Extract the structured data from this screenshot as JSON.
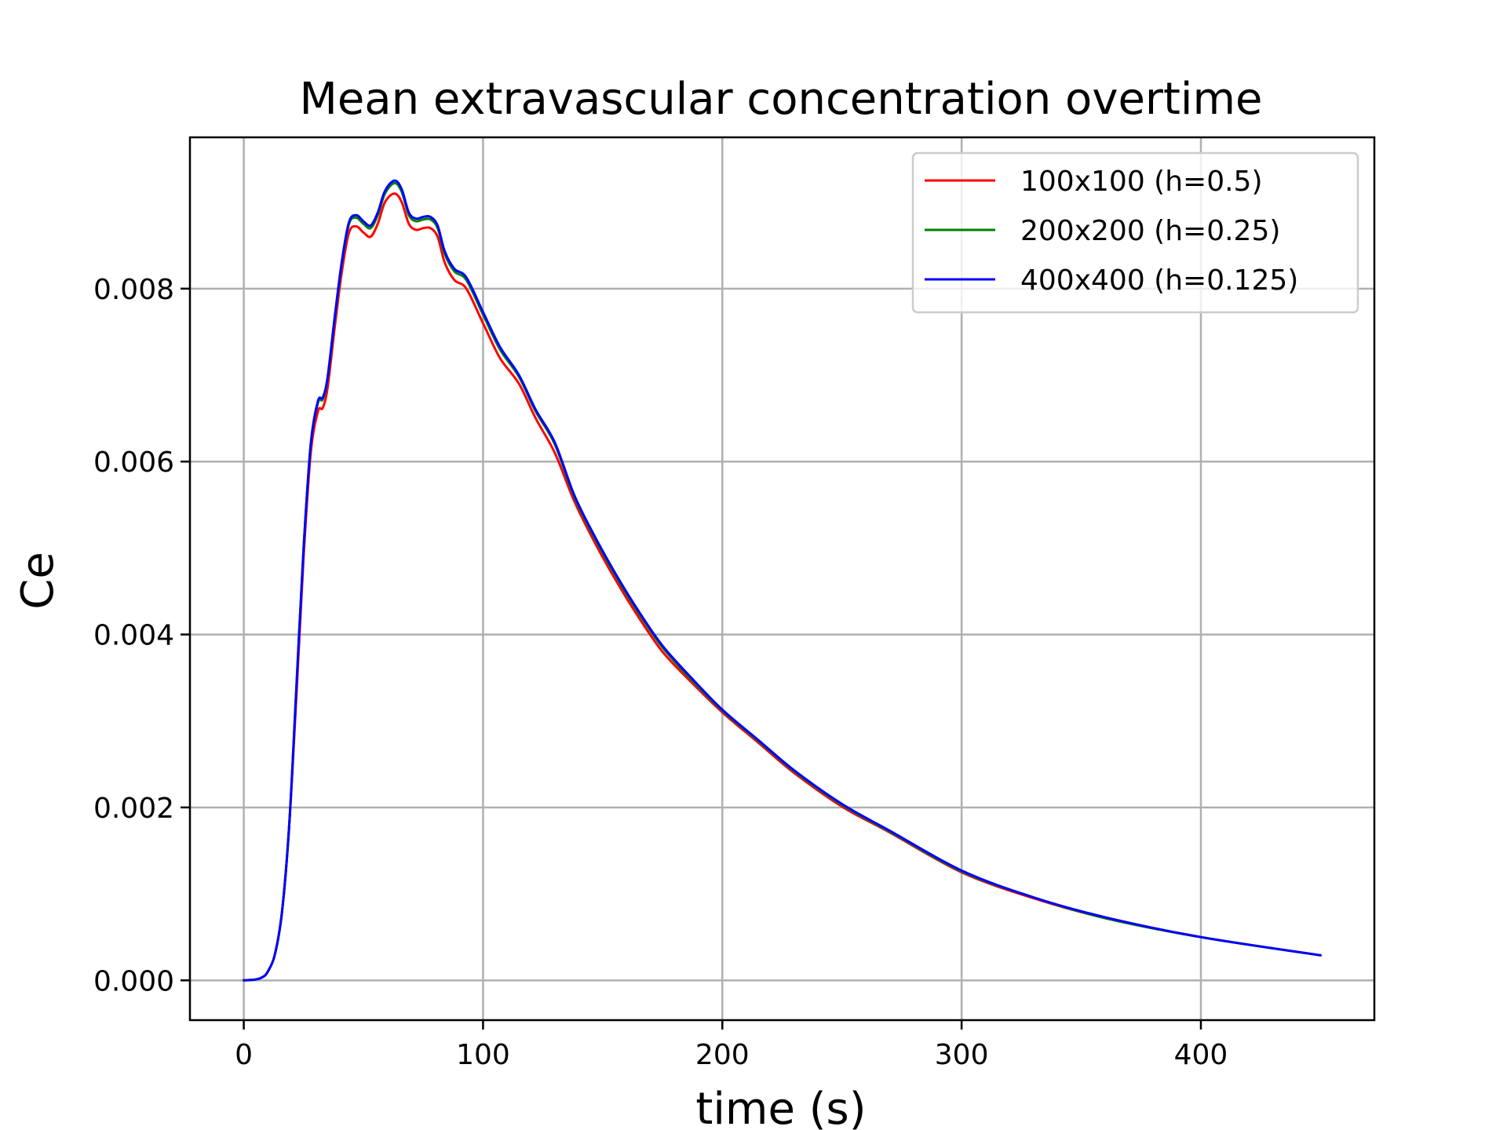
{
  "chart_data": {
    "type": "line",
    "title": "Mean extravascular concentration overtime",
    "xlabel": "time (s)",
    "ylabel": "Ce",
    "xlim": [
      -22.5,
      472.5
    ],
    "ylim": [
      -0.00046,
      0.00975
    ],
    "xticks": [
      0,
      100,
      200,
      300,
      400
    ],
    "xtick_labels": [
      "0",
      "100",
      "200",
      "300",
      "400"
    ],
    "yticks": [
      0.0,
      0.002,
      0.004,
      0.006,
      0.008
    ],
    "ytick_labels": [
      "0.000",
      "0.002",
      "0.004",
      "0.006",
      "0.008"
    ],
    "grid": true,
    "legend_position": "top-right",
    "x": [
      0,
      5,
      8,
      10,
      13,
      16,
      19,
      22,
      25,
      28,
      31,
      33,
      35,
      38,
      41,
      44,
      47,
      50,
      53,
      56,
      59,
      63,
      66,
      69,
      72,
      75,
      78,
      81,
      84,
      88,
      93,
      100,
      107,
      115,
      122,
      130,
      138,
      146,
      155,
      165,
      175,
      187,
      200,
      215,
      230,
      250,
      270,
      300,
      330,
      360,
      400,
      450
    ],
    "series": [
      {
        "name": "100x100 (h=0.5)",
        "color": "#ff0000",
        "values": [
          0.0,
          1e-05,
          4e-05,
          0.0001,
          0.0003,
          0.0008,
          0.0018,
          0.0033,
          0.0049,
          0.0061,
          0.00658,
          0.00662,
          0.00685,
          0.00755,
          0.0082,
          0.00865,
          0.00872,
          0.00865,
          0.0086,
          0.00875,
          0.009,
          0.0091,
          0.009,
          0.00875,
          0.00868,
          0.0087,
          0.0087,
          0.0086,
          0.0083,
          0.0081,
          0.008,
          0.0076,
          0.0072,
          0.0069,
          0.0065,
          0.0061,
          0.00555,
          0.0051,
          0.00465,
          0.0042,
          0.0038,
          0.00345,
          0.0031,
          0.00275,
          0.0024,
          0.00201,
          0.00171,
          0.00125,
          0.00095,
          0.00072,
          0.0005,
          0.00029
        ]
      },
      {
        "name": "200x200 (h=0.25)",
        "color": "#008000",
        "values": [
          0.0,
          1e-05,
          4e-05,
          0.0001,
          0.0003,
          0.0008,
          0.0018,
          0.0034,
          0.005,
          0.0062,
          0.00668,
          0.00672,
          0.00695,
          0.00765,
          0.0083,
          0.00875,
          0.00882,
          0.00875,
          0.0087,
          0.00885,
          0.0091,
          0.00922,
          0.00912,
          0.00885,
          0.00878,
          0.0088,
          0.0088,
          0.0087,
          0.0084,
          0.0082,
          0.0081,
          0.0077,
          0.0073,
          0.00698,
          0.00658,
          0.0062,
          0.0056,
          0.00515,
          0.0047,
          0.00425,
          0.00385,
          0.00348,
          0.00312,
          0.00277,
          0.00242,
          0.00203,
          0.00172,
          0.00126,
          0.00096,
          0.00072,
          0.0005,
          0.00029
        ]
      },
      {
        "name": "400x400 (h=0.125)",
        "color": "#0000ff",
        "values": [
          0.0,
          1e-05,
          4e-05,
          0.0001,
          0.0003,
          0.0008,
          0.0018,
          0.0034,
          0.005,
          0.0062,
          0.0067,
          0.00674,
          0.00697,
          0.00767,
          0.00832,
          0.00877,
          0.00885,
          0.00878,
          0.00873,
          0.00888,
          0.00913,
          0.00925,
          0.00915,
          0.00888,
          0.00881,
          0.00883,
          0.00883,
          0.00873,
          0.00843,
          0.00823,
          0.00813,
          0.00773,
          0.00733,
          0.007,
          0.0066,
          0.00622,
          0.00562,
          0.00517,
          0.00472,
          0.00427,
          0.00387,
          0.0035,
          0.00313,
          0.00278,
          0.00243,
          0.00204,
          0.00173,
          0.00127,
          0.00096,
          0.00073,
          0.0005,
          0.00029
        ]
      }
    ]
  }
}
